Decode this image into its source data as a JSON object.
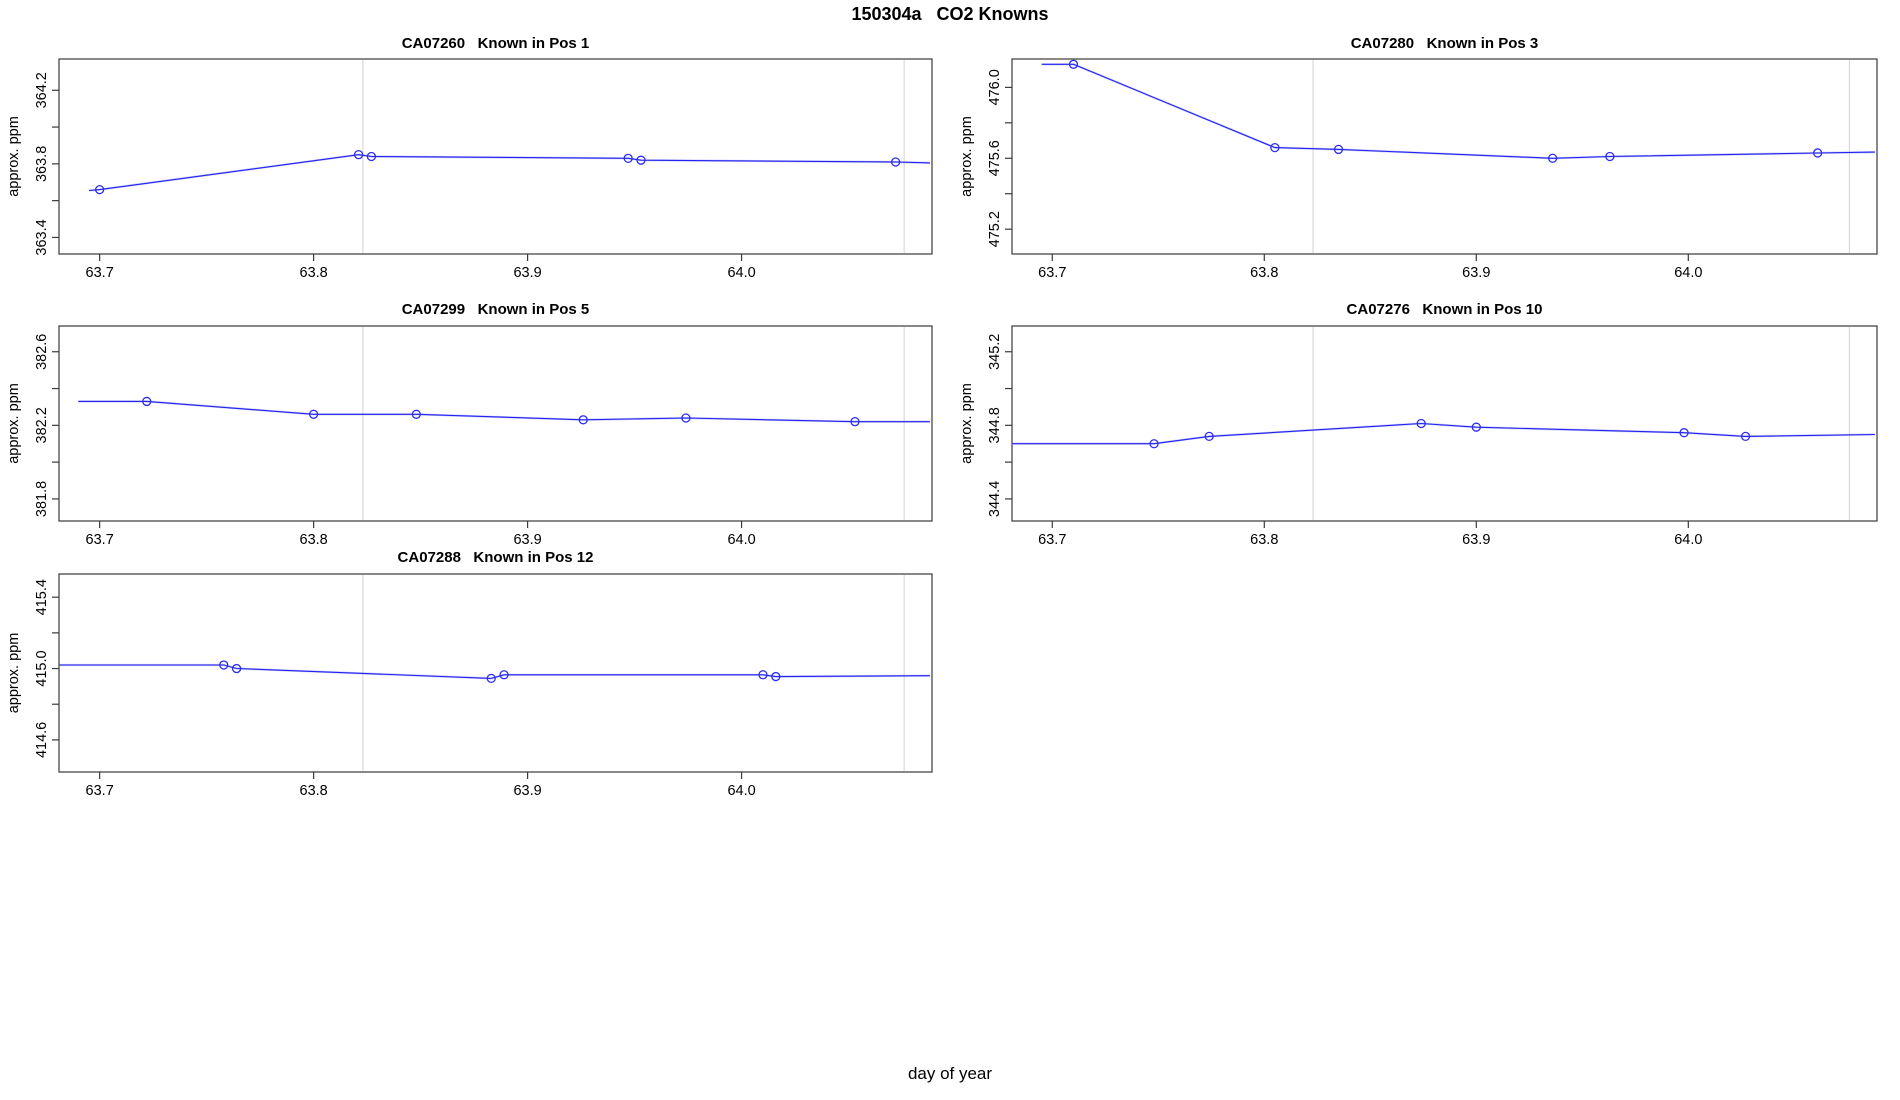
{
  "figure": {
    "title": "150304a   CO2 Knowns",
    "xlabel": "day of year"
  },
  "colors": {
    "line": "#2323f0",
    "line_halo": "#9c9cf5",
    "marker": "#2d2df0",
    "vline": "#d9d9d9",
    "box": "#3a3a3a",
    "tick_text": "#000000"
  },
  "chart_data": [
    {
      "type": "line",
      "id": "CA07260",
      "title": "CA07260   Known in Pos 1",
      "ylabel": "approx. ppm",
      "xlim": [
        63.681,
        64.089
      ],
      "ylim": [
        363.31,
        364.37
      ],
      "x_ticks": [
        63.7,
        63.8,
        63.9,
        64.0
      ],
      "x_tick_labels": [
        "63.7",
        "63.8",
        "63.9",
        "64.0"
      ],
      "y_ticks": [
        363.4,
        363.6,
        363.8,
        364.0,
        364.2
      ],
      "y_tick_labels": [
        "363.4",
        "",
        "363.8",
        "",
        "364.2"
      ],
      "vlines": [
        63.823,
        64.076
      ],
      "points": {
        "x": [
          63.7,
          63.821,
          63.827,
          63.947,
          63.953,
          64.072
        ],
        "y": [
          363.66,
          363.85,
          363.84,
          363.83,
          363.82,
          363.81
        ]
      },
      "line": {
        "x": [
          63.695,
          63.7,
          63.821,
          63.827,
          63.947,
          63.953,
          64.072,
          64.088
        ],
        "y": [
          363.655,
          363.66,
          363.85,
          363.84,
          363.83,
          363.82,
          363.81,
          363.805
        ]
      }
    },
    {
      "type": "line",
      "id": "CA07280",
      "title": "CA07280   Known in Pos 3",
      "ylabel": "approx. ppm",
      "xlim": [
        63.681,
        64.089
      ],
      "ylim": [
        475.06,
        476.16
      ],
      "x_ticks": [
        63.7,
        63.8,
        63.9,
        64.0
      ],
      "x_tick_labels": [
        "63.7",
        "63.8",
        "63.9",
        "64.0"
      ],
      "y_ticks": [
        475.2,
        475.4,
        475.6,
        475.8,
        476.0
      ],
      "y_tick_labels": [
        "475.2",
        "",
        "475.6",
        "",
        "476.0"
      ],
      "vlines": [
        63.823,
        64.076
      ],
      "points": {
        "x": [
          63.71,
          63.805,
          63.835,
          63.936,
          63.963,
          64.061
        ],
        "y": [
          476.13,
          475.66,
          475.65,
          475.6,
          475.61,
          475.63
        ]
      },
      "line": {
        "x": [
          63.695,
          63.71,
          63.805,
          63.835,
          63.936,
          63.963,
          64.061,
          64.088
        ],
        "y": [
          476.13,
          476.13,
          475.66,
          475.65,
          475.6,
          475.61,
          475.63,
          475.635
        ]
      }
    },
    {
      "type": "line",
      "id": "CA07299",
      "title": "CA07299   Known in Pos 5",
      "ylabel": "approx. ppm",
      "xlim": [
        63.681,
        64.089
      ],
      "ylim": [
        381.68,
        382.74
      ],
      "x_ticks": [
        63.7,
        63.8,
        63.9,
        64.0
      ],
      "x_tick_labels": [
        "63.7",
        "63.8",
        "63.9",
        "64.0"
      ],
      "y_ticks": [
        381.8,
        382.0,
        382.2,
        382.4,
        382.6
      ],
      "y_tick_labels": [
        "381.8",
        "",
        "382.2",
        "",
        "382.6"
      ],
      "vlines": [
        63.823,
        64.076
      ],
      "points": {
        "x": [
          63.722,
          63.8,
          63.848,
          63.926,
          63.974,
          64.053
        ],
        "y": [
          382.33,
          382.26,
          382.26,
          382.23,
          382.24,
          382.22
        ]
      },
      "line": {
        "x": [
          63.69,
          63.722,
          63.8,
          63.848,
          63.926,
          63.974,
          64.053,
          64.088
        ],
        "y": [
          382.33,
          382.33,
          382.26,
          382.26,
          382.23,
          382.24,
          382.22,
          382.22
        ]
      }
    },
    {
      "type": "line",
      "id": "CA07276",
      "title": "CA07276   Known in Pos 10",
      "ylabel": "approx. ppm",
      "xlim": [
        63.681,
        64.089
      ],
      "ylim": [
        344.28,
        345.34
      ],
      "x_ticks": [
        63.7,
        63.8,
        63.9,
        64.0
      ],
      "x_tick_labels": [
        "63.7",
        "63.8",
        "63.9",
        "64.0"
      ],
      "y_ticks": [
        344.4,
        344.6,
        344.8,
        345.0,
        345.2
      ],
      "y_tick_labels": [
        "344.4",
        "",
        "344.8",
        "",
        "345.2"
      ],
      "vlines": [
        63.823,
        64.076
      ],
      "points": {
        "x": [
          63.748,
          63.774,
          63.874,
          63.9,
          63.998,
          64.027
        ],
        "y": [
          344.7,
          344.74,
          344.81,
          344.79,
          344.76,
          344.74
        ]
      },
      "line": {
        "x": [
          63.681,
          63.748,
          63.774,
          63.874,
          63.9,
          63.998,
          64.027,
          64.088
        ],
        "y": [
          344.7,
          344.7,
          344.74,
          344.81,
          344.79,
          344.76,
          344.74,
          344.75
        ]
      }
    },
    {
      "type": "line",
      "id": "CA07288",
      "title": "CA07288   Known in Pos 12",
      "ylabel": "approx. ppm",
      "xlim": [
        63.681,
        64.089
      ],
      "ylim": [
        414.42,
        415.53
      ],
      "x_ticks": [
        63.7,
        63.8,
        63.9,
        64.0
      ],
      "x_tick_labels": [
        "63.7",
        "63.8",
        "63.9",
        "64.0"
      ],
      "y_ticks": [
        414.6,
        414.8,
        415.0,
        415.2,
        415.4
      ],
      "y_tick_labels": [
        "414.6",
        "",
        "415.0",
        "",
        "415.4"
      ],
      "vlines": [
        63.823,
        64.076
      ],
      "points": {
        "x": [
          63.758,
          63.764,
          63.883,
          63.889,
          64.01,
          64.016
        ],
        "y": [
          415.02,
          415.0,
          414.945,
          414.965,
          414.965,
          414.955
        ]
      },
      "line": {
        "x": [
          63.681,
          63.758,
          63.764,
          63.883,
          63.889,
          64.01,
          64.016,
          64.088
        ],
        "y": [
          415.02,
          415.02,
          415.0,
          414.945,
          414.965,
          414.965,
          414.955,
          414.96
        ]
      }
    }
  ]
}
